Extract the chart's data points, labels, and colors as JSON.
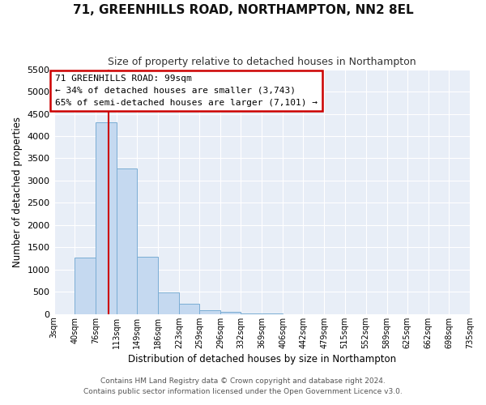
{
  "title": "71, GREENHILLS ROAD, NORTHAMPTON, NN2 8EL",
  "subtitle": "Size of property relative to detached houses in Northampton",
  "xlabel": "Distribution of detached houses by size in Northampton",
  "ylabel": "Number of detached properties",
  "bin_labels": [
    "3sqm",
    "40sqm",
    "76sqm",
    "113sqm",
    "149sqm",
    "186sqm",
    "223sqm",
    "259sqm",
    "296sqm",
    "332sqm",
    "369sqm",
    "406sqm",
    "442sqm",
    "479sqm",
    "515sqm",
    "552sqm",
    "589sqm",
    "625sqm",
    "662sqm",
    "698sqm",
    "735sqm"
  ],
  "bar_values": [
    0,
    1270,
    4300,
    3280,
    1290,
    480,
    235,
    95,
    50,
    20,
    10,
    5,
    3,
    2,
    1,
    1,
    0,
    0,
    0,
    0
  ],
  "bar_color": "#c5d9f0",
  "bar_edge_color": "#7aadd4",
  "vline_x": 99,
  "vline_color": "#cc0000",
  "ylim": [
    0,
    5500
  ],
  "yticks": [
    0,
    500,
    1000,
    1500,
    2000,
    2500,
    3000,
    3500,
    4000,
    4500,
    5000,
    5500
  ],
  "annotation_title": "71 GREENHILLS ROAD: 99sqm",
  "annotation_line1": "← 34% of detached houses are smaller (3,743)",
  "annotation_line2": "65% of semi-detached houses are larger (7,101) →",
  "annotation_box_color": "#ffffff",
  "annotation_box_edge": "#cc0000",
  "footer1": "Contains HM Land Registry data © Crown copyright and database right 2024.",
  "footer2": "Contains public sector information licensed under the Open Government Licence v3.0.",
  "bg_color": "#ffffff",
  "plot_bg_color": "#e8eef7",
  "grid_color": "#ffffff",
  "label_vals": [
    3,
    40,
    76,
    113,
    149,
    186,
    223,
    259,
    296,
    332,
    369,
    406,
    442,
    479,
    515,
    552,
    589,
    625,
    662,
    698,
    735
  ]
}
